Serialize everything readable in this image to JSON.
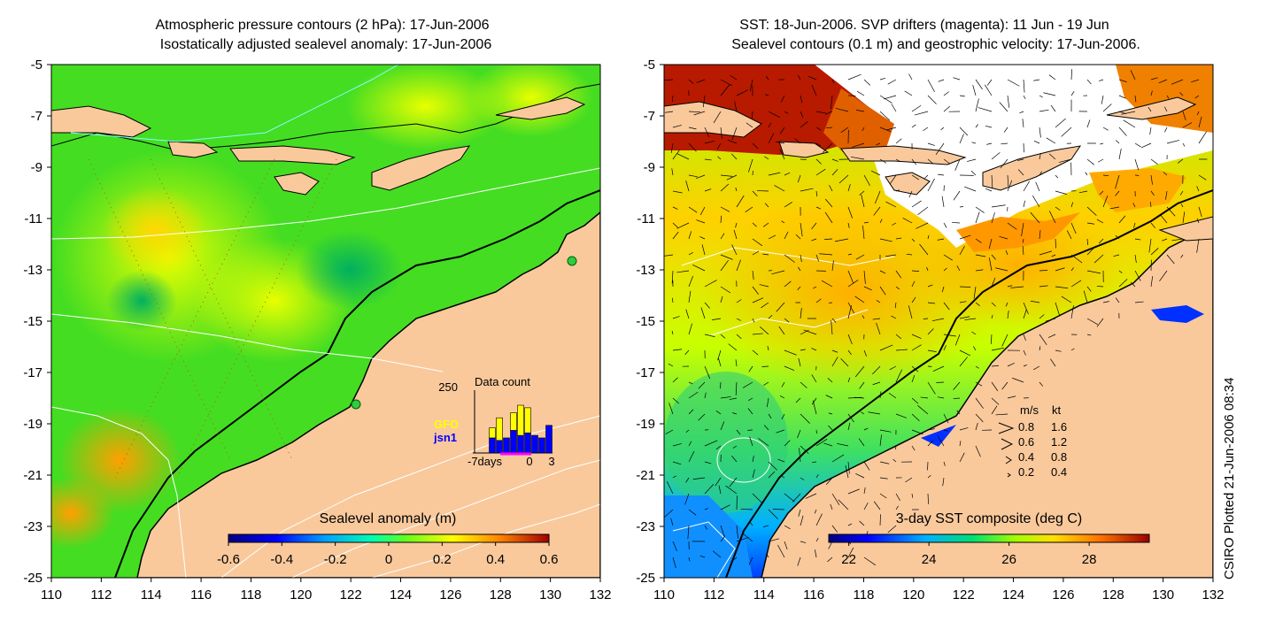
{
  "left_map": {
    "title_line1": "Atmospheric pressure contours (2 hPa): 17-Jun-2006",
    "title_line2": "Isostatically adjusted sealevel anomaly: 17-Jun-2006",
    "x_ticks": [
      "110",
      "112",
      "114",
      "116",
      "118",
      "120",
      "122",
      "124",
      "126",
      "128",
      "130",
      "132"
    ],
    "y_ticks": [
      "-5",
      "-7",
      "-9",
      "-11",
      "-13",
      "-15",
      "-17",
      "-19",
      "-21",
      "-23",
      "-25"
    ],
    "colorbar_label": "Sealevel anomaly (m)",
    "colorbar_ticks": [
      "-0.6",
      "-0.4",
      "-0.2",
      "0",
      "0.2",
      "0.4",
      "0.6"
    ],
    "colorbar_range": [
      -0.6,
      0.6
    ],
    "inset": {
      "title": "Data count",
      "y_max_label": "250",
      "x_label": "-7days",
      "x_ticks": [
        "0",
        "3"
      ],
      "legend_gfo": "GFO",
      "legend_jsn1": "jsn1",
      "gfo_color": "#ffff00",
      "jsn1_color": "#0000ff",
      "days": [
        -7,
        -6,
        -5,
        -4,
        -3,
        -2,
        -1,
        0,
        1,
        2,
        3
      ],
      "gfo_counts": [
        0,
        0,
        40,
        90,
        0,
        70,
        120,
        100,
        0,
        0,
        0
      ],
      "jsn1_counts": [
        0,
        0,
        60,
        50,
        60,
        90,
        70,
        80,
        70,
        60,
        110
      ]
    }
  },
  "right_map": {
    "title_line1": "SST: 18-Jun-2006. SVP drifters (magenta): 11 Jun - 19 Jun",
    "title_line2": "Sealevel contours (0.1 m) and geostrophic velocity: 17-Jun-2006.",
    "x_ticks": [
      "110",
      "112",
      "114",
      "116",
      "118",
      "120",
      "122",
      "124",
      "126",
      "128",
      "130",
      "132"
    ],
    "y_ticks": [
      "-5",
      "-7",
      "-9",
      "-11",
      "-13",
      "-15",
      "-17",
      "-19",
      "-21",
      "-23",
      "-25"
    ],
    "colorbar_label": "3-day SST composite (deg C)",
    "colorbar_ticks": [
      "22",
      "24",
      "26",
      "28"
    ],
    "colorbar_range": [
      21.5,
      29.5
    ],
    "velocity_key": {
      "header_ms": "m/s",
      "header_kt": "kt",
      "rows": [
        {
          "ms": "0.8",
          "kt": "1.6"
        },
        {
          "ms": "0.6",
          "kt": "1.2"
        },
        {
          "ms": "0.4",
          "kt": "0.8"
        },
        {
          "ms": "0.2",
          "kt": "0.4"
        }
      ]
    }
  },
  "credit": "CSIRO Plotted 21-Jun-2006 08:34",
  "colors": {
    "land": "#f9c99c",
    "coast": "#000000",
    "contour": "#ffffff"
  }
}
